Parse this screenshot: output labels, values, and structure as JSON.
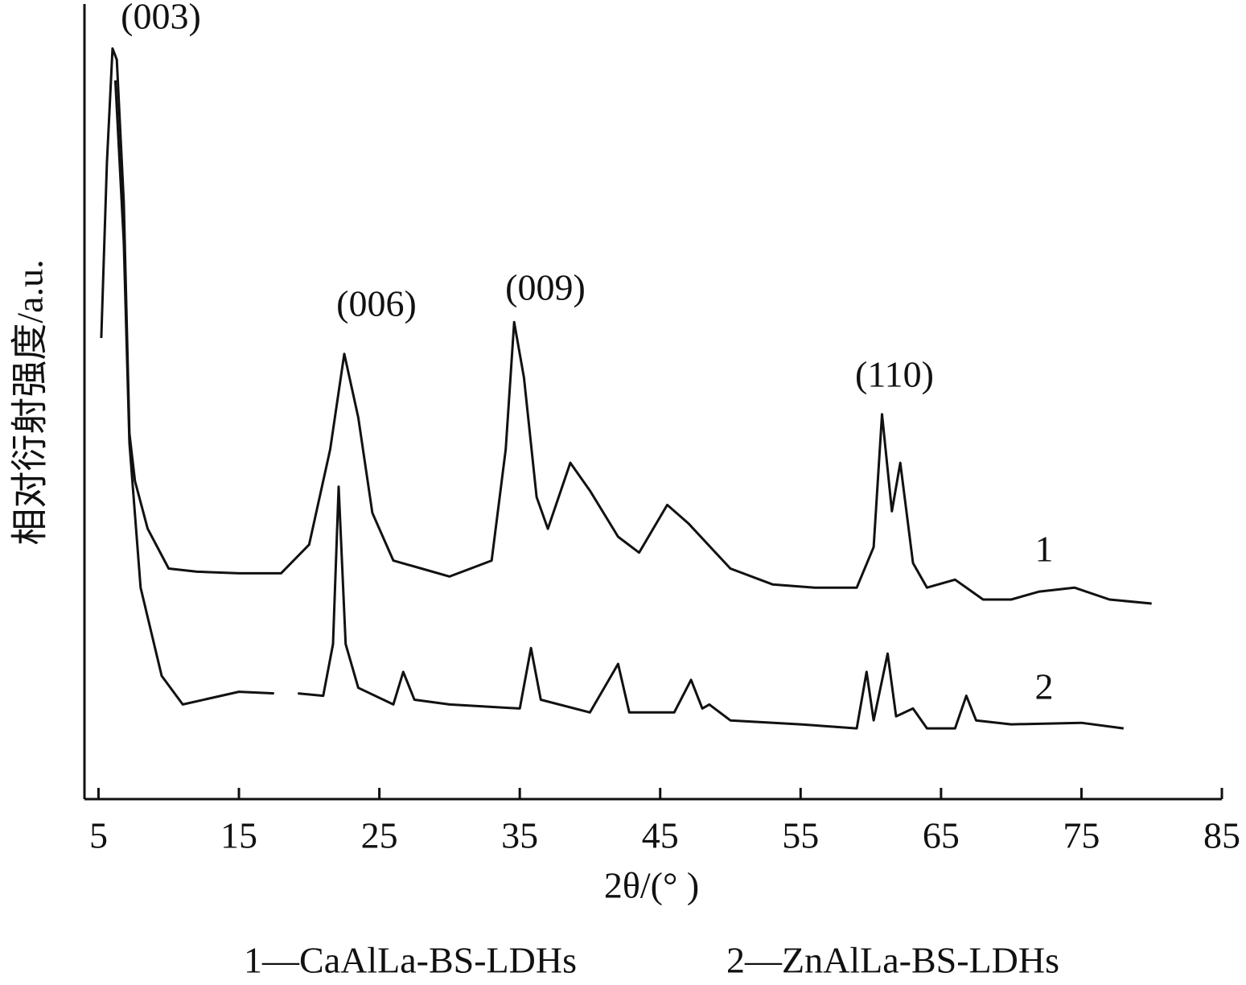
{
  "chart_data": {
    "type": "line",
    "xlabel": "2θ/(° )",
    "ylabel": "相对衍射强度/a.u.",
    "xlim": [
      4,
      85
    ],
    "xticks": [
      5,
      15,
      25,
      35,
      45,
      55,
      65,
      75,
      85
    ],
    "ylim": [
      0,
      100
    ],
    "color": "#111111",
    "legend": [
      "1—CaAlLa-BS-LDHs",
      "2—ZnAlLa-BS-LDHs"
    ],
    "annotations": [
      "(003)",
      "(006)",
      "(009)",
      "(110)"
    ],
    "series": [
      {
        "label": "1",
        "x": [
          5.2,
          5.6,
          6.0,
          6.3,
          6.8,
          7.2,
          7.6,
          8.5,
          10,
          12,
          15,
          18,
          20,
          21.5,
          22.5,
          23.5,
          24.5,
          26,
          28,
          30,
          33,
          34,
          34.6,
          35.3,
          36.2,
          37,
          38.6,
          40,
          42,
          43.5,
          45.5,
          47,
          50,
          53,
          56,
          59,
          60.2,
          60.8,
          61.5,
          62.1,
          63,
          64,
          66,
          68,
          70,
          72,
          74.5,
          77,
          80
        ],
        "values": [
          58,
          80,
          94.4,
          93,
          75,
          46,
          40,
          34,
          29,
          28.6,
          28.4,
          28.4,
          32,
          44,
          56,
          48,
          36,
          30,
          29,
          28,
          30,
          44,
          60,
          53,
          38,
          34,
          42.3,
          38.8,
          33,
          31,
          37,
          34.7,
          29,
          27,
          26.6,
          26.6,
          31.7,
          48.4,
          36.2,
          42.3,
          29.7,
          26.6,
          27.6,
          25.1,
          25.1,
          26.1,
          26.6,
          25.1,
          24.6
        ]
      },
      {
        "label": "2",
        "x": [
          6.2,
          6.8,
          7.2,
          8,
          9.5,
          11,
          13,
          15,
          17.5,
          18.3,
          19.2,
          21,
          21.7,
          22.1,
          22.6,
          23.5,
          26,
          26.7,
          27.5,
          30,
          35,
          35.8,
          36.5,
          40,
          42,
          42.8,
          46,
          47.2,
          48,
          48.5,
          50,
          55,
          59,
          59.7,
          60.2,
          61.2,
          61.8,
          63,
          64,
          66,
          66.8,
          67.5,
          70,
          75,
          78
        ],
        "values": [
          90.4,
          70,
          44.8,
          26.6,
          15.5,
          11.9,
          12.7,
          13.5,
          13.3,
          null,
          13.3,
          13,
          19.5,
          39.3,
          19.5,
          14,
          11.9,
          16,
          12.5,
          11.9,
          11.4,
          19,
          12.5,
          10.9,
          17,
          10.9,
          10.9,
          15,
          11.4,
          11.9,
          9.9,
          9.4,
          8.9,
          16,
          9.9,
          18.3,
          10.4,
          11.4,
          8.9,
          8.9,
          13,
          9.9,
          9.4,
          9.6,
          8.9
        ]
      }
    ]
  }
}
